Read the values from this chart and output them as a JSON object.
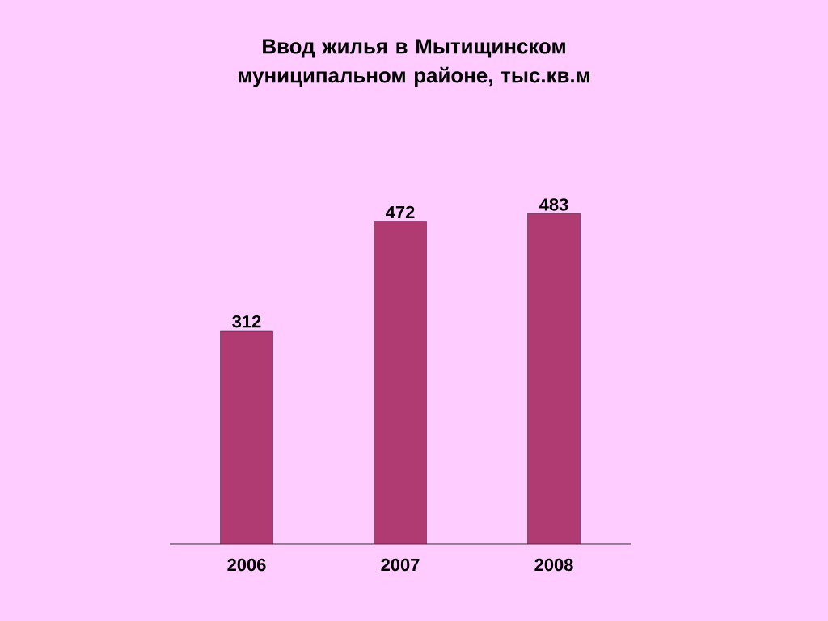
{
  "chart_data": {
    "type": "bar",
    "title": "Ввод жилья в Мытищинском муниципальном районе, тыс.кв.м",
    "categories": [
      "2006",
      "2007",
      "2008"
    ],
    "values": [
      312,
      472,
      483
    ],
    "color": "#b03a72",
    "data_labels": true
  }
}
